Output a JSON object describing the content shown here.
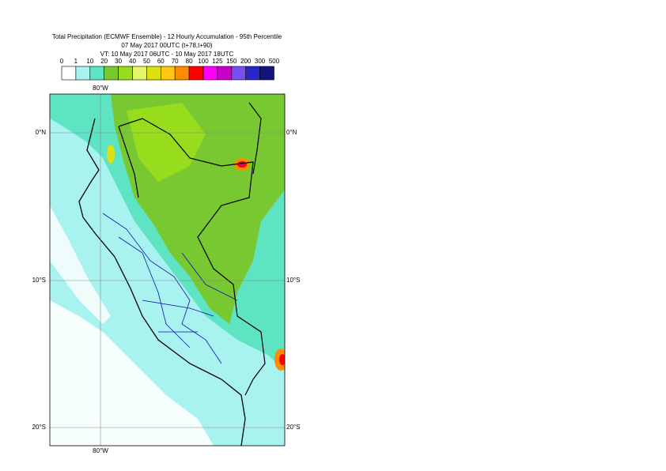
{
  "header": {
    "title": "Total Precipitation (ECMWF Ensemble) - 12 Hourly Accumulation - 95th Percentile",
    "subtitle": "07 May 2017 00UTC (t+78,t+90)",
    "valid_time": "VT: 10 May 2017 06UTC - 10 May 2017 18UTC"
  },
  "legend": {
    "thresholds": [
      "0",
      "1",
      "10",
      "20",
      "30",
      "40",
      "50",
      "60",
      "70",
      "80",
      "100",
      "125",
      "150",
      "200",
      "300",
      "500"
    ],
    "colors": [
      "#ffffff",
      "#a8f2f0",
      "#5ee3c3",
      "#78c832",
      "#98dc1e",
      "#e6f56e",
      "#dce114",
      "#ffc814",
      "#ff8c00",
      "#ff0000",
      "#ff00ff",
      "#c800c8",
      "#7850f0",
      "#2828c8",
      "#14147d"
    ]
  },
  "map": {
    "lon_label_top": "80°W",
    "lon_label_bottom": "80°W",
    "lat_labels": [
      "0°N",
      "10°S",
      "20°S"
    ]
  }
}
